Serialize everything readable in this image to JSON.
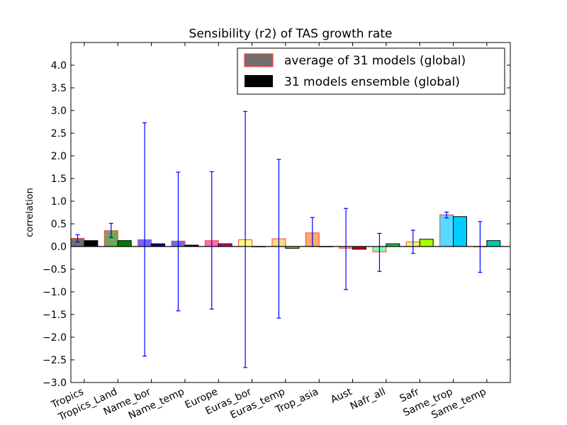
{
  "chart_data": {
    "type": "bar",
    "title": "Sensibility (r2) of TAS growth rate",
    "xlabel": "",
    "ylabel": "correlation",
    "ylim": [
      -3.0,
      4.5
    ],
    "yticks": [
      "-3.0",
      "-2.5",
      "-2.0",
      "-1.5",
      "-1.0",
      "-0.5",
      "0.0",
      "0.5",
      "1.0",
      "1.5",
      "2.0",
      "2.5",
      "3.0",
      "3.5",
      "4.0"
    ],
    "categories": [
      "Tropics",
      "Tropics_Land",
      "Name_bor",
      "Name_temp",
      "Europe",
      "Euras_bor",
      "Euras_temp",
      "Trop_asia",
      "Aust",
      "Nafr_all",
      "Safr",
      "Same_trop",
      "Same_temp"
    ],
    "legend_position": "top-right",
    "series": [
      {
        "name": "average of 31 models (global)",
        "legend_color": "#6f6f6f",
        "values": [
          0.18,
          0.35,
          0.15,
          0.12,
          0.13,
          0.15,
          0.17,
          0.3,
          -0.04,
          -0.12,
          0.1,
          0.7,
          0.0
        ],
        "error_low": [
          0.1,
          0.2,
          -2.42,
          -1.42,
          -1.38,
          -2.67,
          -1.58,
          0.0,
          -0.95,
          -0.55,
          -0.15,
          0.63,
          -0.57
        ],
        "error_high": [
          0.26,
          0.51,
          2.73,
          1.64,
          1.65,
          2.98,
          1.92,
          0.64,
          0.84,
          0.29,
          0.36,
          0.76,
          0.55
        ],
        "colors": [
          "#6f6f6f",
          "#6aaa5a",
          "#6a6aff",
          "#6a6aff",
          "#ff6ab4",
          "#ffff7f",
          "#ffda7f",
          "#ffab6a",
          "#ff9f9f",
          "#7fffa9",
          "#eaff6a",
          "#55d9ff",
          "#ff9fe8"
        ]
      },
      {
        "name": "31 models ensemble (global)",
        "legend_color": "#000000",
        "values": [
          0.13,
          0.13,
          0.06,
          0.03,
          0.06,
          0.0,
          -0.04,
          0.0,
          -0.06,
          0.06,
          0.16,
          0.66,
          0.13
        ],
        "colors": [
          "#000000",
          "#007f00",
          "#00007f",
          "#00007f",
          "#cc0066",
          "#ffff00",
          "#ccaa00",
          "#ff7f00",
          "#cc0000",
          "#00cc55",
          "#aaff00",
          "#00ccff",
          "#00ccaa"
        ]
      }
    ]
  }
}
